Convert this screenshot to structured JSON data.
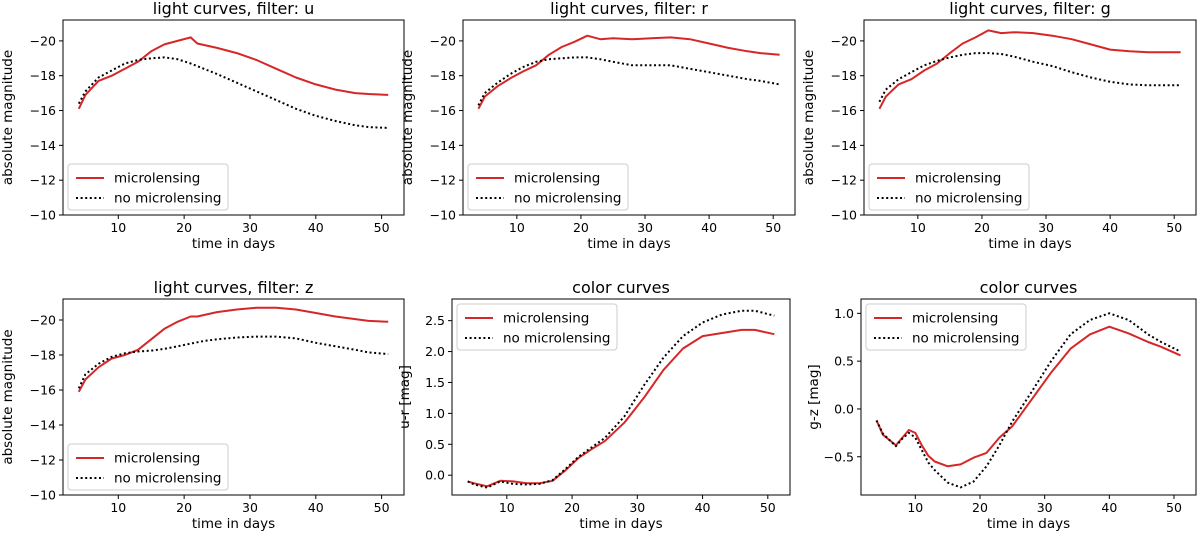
{
  "figure": {
    "description_hidden": ""
  },
  "colors": {
    "microlensing": "#d62728",
    "no_microlensing": "#000000",
    "axes": "#000000"
  },
  "chart_data": [
    {
      "type": "line",
      "title": "light curves, filter: u",
      "xlabel": "time in days",
      "ylabel": "absolute magnitude",
      "xlim": [
        1.6,
        53.4
      ],
      "ylim": [
        -10,
        -21.2
      ],
      "xticks": [
        10,
        20,
        30,
        40,
        50
      ],
      "yticks": [
        -10,
        -12,
        -14,
        -16,
        -18,
        -20
      ],
      "legend": "lower-left",
      "series": [
        {
          "name": "microlensing",
          "style": "solid",
          "x": [
            4,
            5,
            7,
            9,
            11,
            13,
            15,
            17,
            19,
            21,
            22,
            25,
            28,
            31,
            34,
            37,
            40,
            43,
            46,
            48,
            51
          ],
          "y": [
            -16.1,
            -16.9,
            -17.7,
            -18.0,
            -18.4,
            -18.8,
            -19.4,
            -19.8,
            -20.0,
            -20.2,
            -19.85,
            -19.6,
            -19.3,
            -18.9,
            -18.4,
            -17.9,
            -17.5,
            -17.2,
            -17.0,
            -16.95,
            -16.9
          ]
        },
        {
          "name": "no microlensing",
          "style": "dotted",
          "x": [
            4,
            5,
            7,
            9,
            11,
            13,
            15,
            17,
            19,
            21,
            23,
            25,
            28,
            31,
            34,
            37,
            40,
            43,
            46,
            48,
            51
          ],
          "y": [
            -16.4,
            -17.1,
            -17.9,
            -18.3,
            -18.7,
            -18.9,
            -19.0,
            -19.05,
            -18.95,
            -18.7,
            -18.4,
            -18.1,
            -17.6,
            -17.1,
            -16.6,
            -16.1,
            -15.7,
            -15.4,
            -15.15,
            -15.05,
            -15.0
          ]
        }
      ]
    },
    {
      "type": "line",
      "title": "light curves, filter: r",
      "xlabel": "time in days",
      "ylabel": "absolute magnitude",
      "xlim": [
        1.6,
        53.4
      ],
      "ylim": [
        -10,
        -21.2
      ],
      "xticks": [
        10,
        20,
        30,
        40,
        50
      ],
      "yticks": [
        -10,
        -12,
        -14,
        -16,
        -18,
        -20
      ],
      "legend": "lower-left",
      "series": [
        {
          "name": "microlensing",
          "style": "solid",
          "x": [
            4,
            5,
            7,
            9,
            11,
            13,
            15,
            17,
            19,
            21,
            23,
            25,
            28,
            31,
            34,
            37,
            40,
            43,
            46,
            48,
            51
          ],
          "y": [
            -16.1,
            -16.8,
            -17.4,
            -17.85,
            -18.25,
            -18.6,
            -19.2,
            -19.65,
            -19.95,
            -20.3,
            -20.1,
            -20.15,
            -20.1,
            -20.15,
            -20.2,
            -20.1,
            -19.85,
            -19.6,
            -19.4,
            -19.3,
            -19.2
          ]
        },
        {
          "name": "no microlensing",
          "style": "dotted",
          "x": [
            4,
            5,
            7,
            9,
            11,
            13,
            15,
            17,
            19,
            21,
            23,
            25,
            28,
            31,
            34,
            37,
            40,
            43,
            46,
            48,
            51
          ],
          "y": [
            -16.3,
            -17.0,
            -17.6,
            -18.1,
            -18.5,
            -18.8,
            -18.95,
            -19.0,
            -19.05,
            -19.05,
            -18.95,
            -18.8,
            -18.6,
            -18.6,
            -18.6,
            -18.4,
            -18.2,
            -18.0,
            -17.8,
            -17.7,
            -17.5
          ]
        }
      ]
    },
    {
      "type": "line",
      "title": "light curves, filter: g",
      "xlabel": "time in days",
      "ylabel": "absolute magnitude",
      "xlim": [
        1.6,
        53.4
      ],
      "ylim": [
        -10,
        -21.2
      ],
      "xticks": [
        10,
        20,
        30,
        40,
        50
      ],
      "yticks": [
        -10,
        -12,
        -14,
        -16,
        -18,
        -20
      ],
      "legend": "lower-left",
      "series": [
        {
          "name": "microlensing",
          "style": "solid",
          "x": [
            4,
            5,
            7,
            9,
            11,
            13,
            15,
            17,
            19,
            21,
            23,
            25,
            28,
            31,
            34,
            37,
            40,
            43,
            46,
            48,
            51
          ],
          "y": [
            -16.1,
            -16.8,
            -17.5,
            -17.8,
            -18.3,
            -18.7,
            -19.3,
            -19.85,
            -20.2,
            -20.6,
            -20.45,
            -20.5,
            -20.45,
            -20.3,
            -20.1,
            -19.8,
            -19.5,
            -19.4,
            -19.35,
            -19.35,
            -19.35
          ]
        },
        {
          "name": "no microlensing",
          "style": "dotted",
          "x": [
            4,
            5,
            7,
            9,
            11,
            13,
            15,
            17,
            19,
            21,
            23,
            25,
            28,
            31,
            34,
            37,
            40,
            43,
            46,
            48,
            51
          ],
          "y": [
            -16.5,
            -17.2,
            -17.8,
            -18.2,
            -18.6,
            -18.85,
            -19.05,
            -19.2,
            -19.3,
            -19.3,
            -19.25,
            -19.1,
            -18.8,
            -18.55,
            -18.2,
            -17.9,
            -17.65,
            -17.5,
            -17.45,
            -17.45,
            -17.45
          ]
        }
      ]
    },
    {
      "type": "line",
      "title": "light curves, filter: z",
      "xlabel": "time in days",
      "ylabel": "absolute magnitude",
      "xlim": [
        1.6,
        53.4
      ],
      "ylim": [
        -10,
        -21.2
      ],
      "xticks": [
        10,
        20,
        30,
        40,
        50
      ],
      "yticks": [
        -10,
        -12,
        -14,
        -16,
        -18,
        -20
      ],
      "legend": "lower-left",
      "series": [
        {
          "name": "microlensing",
          "style": "solid",
          "x": [
            4,
            5,
            7,
            9,
            11,
            13,
            15,
            17,
            19,
            21,
            22,
            25,
            28,
            31,
            34,
            37,
            40,
            43,
            46,
            48,
            51
          ],
          "y": [
            -15.9,
            -16.6,
            -17.3,
            -17.8,
            -18.0,
            -18.3,
            -18.9,
            -19.5,
            -19.9,
            -20.2,
            -20.2,
            -20.45,
            -20.6,
            -20.7,
            -20.7,
            -20.6,
            -20.4,
            -20.2,
            -20.05,
            -19.95,
            -19.9
          ]
        },
        {
          "name": "no microlensing",
          "style": "dotted",
          "x": [
            4,
            5,
            7,
            9,
            11,
            13,
            15,
            17,
            19,
            21,
            23,
            25,
            28,
            31,
            34,
            37,
            40,
            43,
            46,
            48,
            51
          ],
          "y": [
            -16.1,
            -16.9,
            -17.5,
            -17.9,
            -18.1,
            -18.2,
            -18.25,
            -18.35,
            -18.5,
            -18.65,
            -18.8,
            -18.9,
            -19.0,
            -19.05,
            -19.05,
            -18.95,
            -18.7,
            -18.5,
            -18.3,
            -18.15,
            -18.05
          ]
        }
      ]
    },
    {
      "type": "line",
      "title": "color curves",
      "xlabel": "time in days",
      "ylabel": "u-r [mag]",
      "xlim": [
        1.6,
        53.4
      ],
      "ylim": [
        -0.32,
        2.85
      ],
      "xticks": [
        10,
        20,
        30,
        40,
        50
      ],
      "yticks": [
        0.0,
        0.5,
        1.0,
        1.5,
        2.0,
        2.5
      ],
      "ytick_labels": [
        "0.0",
        "0.5",
        "1.0",
        "1.5",
        "2.0",
        "2.5"
      ],
      "legend": "top-left",
      "series": [
        {
          "name": "microlensing",
          "style": "solid",
          "x": [
            4,
            5,
            7,
            9,
            11,
            13,
            15,
            17,
            19,
            21,
            23,
            25,
            28,
            31,
            34,
            37,
            40,
            43,
            46,
            48,
            51
          ],
          "y": [
            -0.1,
            -0.13,
            -0.18,
            -0.09,
            -0.1,
            -0.13,
            -0.13,
            -0.09,
            0.08,
            0.28,
            0.42,
            0.55,
            0.85,
            1.25,
            1.7,
            2.05,
            2.25,
            2.3,
            2.35,
            2.35,
            2.28
          ]
        },
        {
          "name": "no microlensing",
          "style": "dotted",
          "x": [
            4,
            5,
            7,
            9,
            11,
            13,
            15,
            17,
            19,
            21,
            23,
            25,
            28,
            31,
            34,
            37,
            40,
            43,
            46,
            48,
            51
          ],
          "y": [
            -0.1,
            -0.15,
            -0.2,
            -0.1,
            -0.14,
            -0.15,
            -0.14,
            -0.08,
            0.1,
            0.3,
            0.45,
            0.6,
            0.95,
            1.45,
            1.9,
            2.25,
            2.47,
            2.6,
            2.66,
            2.66,
            2.58
          ]
        }
      ]
    },
    {
      "type": "line",
      "title": "color curves",
      "xlabel": "time in days",
      "ylabel": "g-z [mag]",
      "xlim": [
        1.6,
        53.4
      ],
      "ylim": [
        -0.9,
        1.15
      ],
      "xticks": [
        10,
        20,
        30,
        40,
        50
      ],
      "yticks": [
        -0.5,
        0.0,
        0.5,
        1.0
      ],
      "ytick_labels": [
        "-0.5",
        "0.0",
        "0.5",
        "1.0"
      ],
      "legend": "top-left",
      "series": [
        {
          "name": "microlensing",
          "style": "solid",
          "x": [
            4,
            5,
            7,
            8,
            9,
            10,
            11,
            12,
            13,
            15,
            17,
            19,
            21,
            23,
            25,
            28,
            31,
            34,
            37,
            40,
            43,
            46,
            48,
            51
          ],
          "y": [
            -0.12,
            -0.27,
            -0.38,
            -0.3,
            -0.22,
            -0.25,
            -0.38,
            -0.49,
            -0.55,
            -0.6,
            -0.58,
            -0.51,
            -0.46,
            -0.3,
            -0.18,
            0.1,
            0.38,
            0.63,
            0.78,
            0.86,
            0.79,
            0.7,
            0.65,
            0.56
          ]
        },
        {
          "name": "no microlensing",
          "style": "dotted",
          "x": [
            4,
            5,
            7,
            8,
            9,
            10,
            11,
            12,
            13,
            15,
            17,
            19,
            21,
            23,
            25,
            28,
            31,
            34,
            37,
            40,
            43,
            46,
            48,
            51
          ],
          "y": [
            -0.12,
            -0.26,
            -0.39,
            -0.31,
            -0.25,
            -0.3,
            -0.43,
            -0.56,
            -0.64,
            -0.77,
            -0.82,
            -0.76,
            -0.6,
            -0.38,
            -0.13,
            0.18,
            0.5,
            0.78,
            0.93,
            1.0,
            0.93,
            0.78,
            0.7,
            0.6
          ]
        }
      ]
    }
  ]
}
